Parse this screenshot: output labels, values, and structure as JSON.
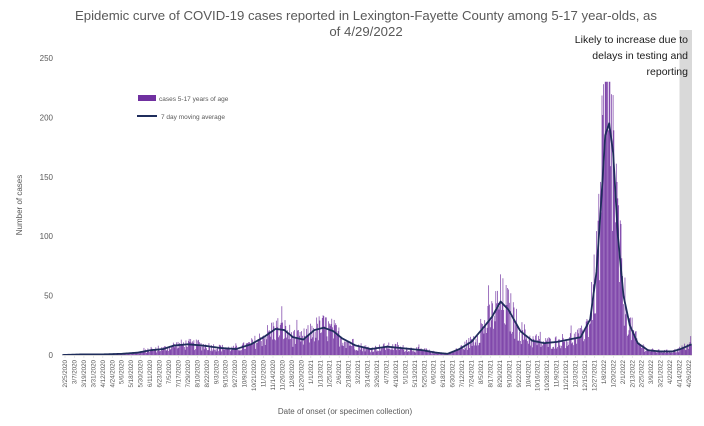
{
  "chart_data": {
    "type": "bar",
    "title_line1": "Epidemic curve of COVID-19 cases reported in Lexington-Fayette County among 5-17 year-olds, as",
    "title_line2": "of 4/29/2022",
    "xlabel": "Date of onset (or specimen collection)",
    "ylabel": "Number of cases",
    "ylim": [
      0,
      250
    ],
    "yticks": [
      0,
      50,
      100,
      150,
      200,
      250
    ],
    "grid": false,
    "legend": {
      "position": "upper-left",
      "entries": [
        {
          "name": "cases 5-17 years of age",
          "kind": "bar",
          "color": "#7030A0"
        },
        {
          "name": "7 day moving average",
          "kind": "line",
          "color": "#1F2D5C"
        }
      ]
    },
    "annotation": {
      "lines": [
        "Likely to increase due to",
        "delays in testing and",
        "reporting"
      ],
      "shaded_from": "4/15/2022",
      "shaded_to": "4/29/2022",
      "shade_color": "#D9D9D9"
    },
    "colors": {
      "bars": "#7030A0",
      "line": "#1F2D5C",
      "axis": "#D9D9D9"
    },
    "x_start": "2/25/2020",
    "x_end": "4/29/2022",
    "x_tick_labels": [
      "2/25/2020",
      "3/7/2020",
      "3/19/2020",
      "3/31/2020",
      "4/12/2020",
      "4/24/2020",
      "5/6/2020",
      "5/18/2020",
      "5/30/2020",
      "6/11/2020",
      "6/23/2020",
      "7/5/2020",
      "7/17/2020",
      "7/29/2020",
      "8/10/2020",
      "8/22/2020",
      "9/3/2020",
      "9/15/2020",
      "9/27/2020",
      "10/9/2020",
      "10/21/2020",
      "11/2/2020",
      "11/14/2020",
      "11/26/2020",
      "12/8/2020",
      "12/20/2020",
      "1/1/2021",
      "1/13/2021",
      "1/25/2021",
      "2/6/2021",
      "2/18/2021",
      "3/2/2021",
      "3/14/2021",
      "3/26/2021",
      "4/7/2021",
      "4/19/2021",
      "5/1/2021",
      "5/13/2021",
      "5/25/2021",
      "6/6/2021",
      "6/18/2021",
      "6/30/2021",
      "7/12/2021",
      "7/24/2021",
      "8/5/2021",
      "8/17/2021",
      "8/29/2021",
      "9/10/2021",
      "9/22/2021",
      "10/4/2021",
      "10/16/2021",
      "10/28/2021",
      "11/9/2021",
      "11/21/2021",
      "12/3/2021",
      "12/15/2021",
      "12/27/2021",
      "1/8/2022",
      "1/20/2022",
      "2/1/2022",
      "2/13/2022",
      "2/25/2022",
      "3/9/2022",
      "3/21/2022",
      "4/2/2022",
      "4/14/2022",
      "4/26/2022"
    ],
    "moving_average": [
      [
        "2/25/2020",
        0
      ],
      [
        "3/20/2020",
        0.5
      ],
      [
        "4/15/2020",
        0.5
      ],
      [
        "5/10/2020",
        1
      ],
      [
        "5/30/2020",
        2
      ],
      [
        "6/15/2020",
        4
      ],
      [
        "7/1/2020",
        5
      ],
      [
        "7/15/2020",
        8
      ],
      [
        "8/1/2020",
        9
      ],
      [
        "8/20/2020",
        8
      ],
      [
        "9/10/2020",
        6
      ],
      [
        "10/1/2020",
        5
      ],
      [
        "10/20/2020",
        9
      ],
      [
        "11/5/2020",
        15
      ],
      [
        "11/20/2020",
        22
      ],
      [
        "12/1/2020",
        21
      ],
      [
        "12/12/2020",
        15
      ],
      [
        "12/25/2020",
        13
      ],
      [
        "1/8/2021",
        21
      ],
      [
        "1/20/2021",
        23
      ],
      [
        "2/1/2021",
        20
      ],
      [
        "2/12/2021",
        14
      ],
      [
        "3/1/2021",
        8
      ],
      [
        "3/20/2021",
        5
      ],
      [
        "4/10/2021",
        7
      ],
      [
        "4/25/2021",
        6
      ],
      [
        "5/10/2021",
        5
      ],
      [
        "5/25/2021",
        4
      ],
      [
        "6/10/2021",
        2
      ],
      [
        "6/25/2021",
        1
      ],
      [
        "7/10/2021",
        5
      ],
      [
        "7/25/2021",
        11
      ],
      [
        "8/8/2021",
        22
      ],
      [
        "8/20/2021",
        32
      ],
      [
        "8/31/2021",
        45
      ],
      [
        "9/10/2021",
        38
      ],
      [
        "9/25/2021",
        20
      ],
      [
        "10/10/2021",
        12
      ],
      [
        "10/25/2021",
        10
      ],
      [
        "11/10/2021",
        11
      ],
      [
        "11/25/2021",
        13
      ],
      [
        "12/10/2021",
        15
      ],
      [
        "12/22/2021",
        30
      ],
      [
        "12/30/2021",
        70
      ],
      [
        "1/5/2022",
        130
      ],
      [
        "1/10/2022",
        185
      ],
      [
        "1/15/2022",
        195
      ],
      [
        "1/20/2022",
        170
      ],
      [
        "1/26/2022",
        100
      ],
      [
        "2/2/2022",
        50
      ],
      [
        "2/10/2022",
        25
      ],
      [
        "2/20/2022",
        10
      ],
      [
        "3/5/2022",
        4
      ],
      [
        "3/20/2022",
        3
      ],
      [
        "4/5/2022",
        3
      ],
      [
        "4/15/2022",
        5
      ],
      [
        "4/29/2022",
        9
      ]
    ]
  }
}
